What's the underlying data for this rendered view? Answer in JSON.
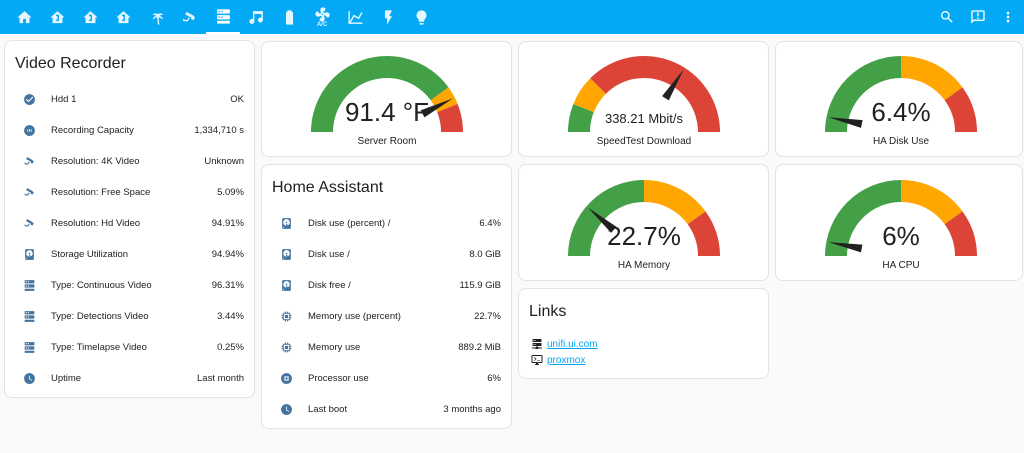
{
  "colors": {
    "accent": "#03a9f4",
    "state_icon": "#44739e",
    "green": "#43a047",
    "yellow": "#ffa600",
    "red": "#db4437",
    "needle": "#212121"
  },
  "toolbar": {
    "tabs": [
      {
        "icon": "home-icon"
      },
      {
        "icon": "home-floor-1-icon"
      },
      {
        "icon": "home-floor-2-icon"
      },
      {
        "icon": "home-floor-3-icon"
      },
      {
        "icon": "palm-tree-icon"
      },
      {
        "icon": "cctv-icon"
      },
      {
        "icon": "server-icon",
        "active": true
      },
      {
        "icon": "music-icon"
      },
      {
        "icon": "battery-icon"
      },
      {
        "icon": "air-conditioner-icon",
        "text": "A/C"
      },
      {
        "icon": "chart-line-icon"
      },
      {
        "icon": "flash-icon"
      },
      {
        "icon": "lightbulb-icon"
      }
    ],
    "actions": [
      {
        "icon": "search-icon"
      },
      {
        "icon": "assist-icon"
      },
      {
        "icon": "more-vert-icon"
      }
    ]
  },
  "video_recorder": {
    "title": "Video Recorder",
    "rows": [
      {
        "label": "Hdd 1",
        "value": "OK",
        "icon": "check-circle-icon"
      },
      {
        "label": "Recording Capacity",
        "value": "1,334,710 s",
        "icon": "sd-icon"
      },
      {
        "label": "Resolution: 4K Video",
        "value": "Unknown",
        "icon": "cctv-icon"
      },
      {
        "label": "Resolution: Free Space",
        "value": "5.09%",
        "icon": "cctv-icon"
      },
      {
        "label": "Resolution: Hd Video",
        "value": "94.91%",
        "icon": "cctv-icon"
      },
      {
        "label": "Storage Utilization",
        "value": "94.94%",
        "icon": "harddisk-icon"
      },
      {
        "label": "Type: Continuous Video",
        "value": "96.31%",
        "icon": "server-icon"
      },
      {
        "label": "Type: Detections Video",
        "value": "3.44%",
        "icon": "server-icon"
      },
      {
        "label": "Type: Timelapse Video",
        "value": "0.25%",
        "icon": "server-icon"
      },
      {
        "label": "Uptime",
        "value": "Last month",
        "icon": "clock-icon"
      }
    ]
  },
  "home_assistant": {
    "title": "Home Assistant",
    "rows": [
      {
        "label": "Disk use (percent) /",
        "value": "6.4%",
        "icon": "harddisk-icon"
      },
      {
        "label": "Disk use /",
        "value": "8.0 GiB",
        "icon": "harddisk-icon"
      },
      {
        "label": "Disk free /",
        "value": "115.9 GiB",
        "icon": "harddisk-icon"
      },
      {
        "label": "Memory use (percent)",
        "value": "22.7%",
        "icon": "memory-icon"
      },
      {
        "label": "Memory use",
        "value": "889.2 MiB",
        "icon": "memory-icon"
      },
      {
        "label": "Processor use",
        "value": "6%",
        "icon": "cpu-icon"
      },
      {
        "label": "Last boot",
        "value": "3 months ago",
        "icon": "clock-icon"
      }
    ]
  },
  "gauges": {
    "server_room": {
      "value_text": "91.4 °F",
      "name": "Server Room",
      "fraction": 0.85,
      "segments": [
        0.8,
        0.88
      ]
    },
    "speedtest": {
      "value_text": "338.21 Mbit/s",
      "name": "SpeedTest Download",
      "fraction": 0.68,
      "segments": [
        0.12,
        0.25
      ]
    },
    "disk": {
      "value_text": "6.4%",
      "name": "HA Disk Use",
      "fraction": 0.064,
      "segments": [
        0.5,
        0.8
      ]
    },
    "memory": {
      "value_text": "22.7%",
      "name": "HA Memory",
      "fraction": 0.227,
      "segments": [
        0.5,
        0.8
      ]
    },
    "cpu": {
      "value_text": "6%",
      "name": "HA CPU",
      "fraction": 0.06,
      "segments": [
        0.5,
        0.8
      ]
    }
  },
  "links": {
    "title": "Links",
    "items": [
      {
        "label": "unifi.ui.com",
        "icon": "server-network-icon"
      },
      {
        "label": "proxmox",
        "icon": "monitor-icon"
      }
    ]
  }
}
